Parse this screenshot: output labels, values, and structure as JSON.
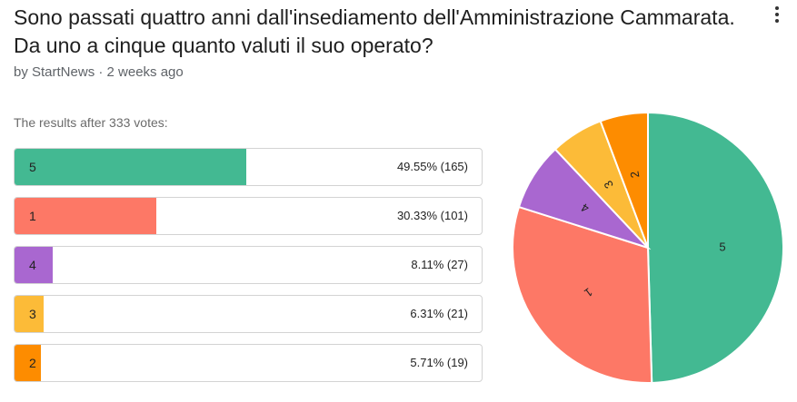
{
  "poll": {
    "title": "Sono passati quattro anni dall'insediamento dell'Amministrazione Cammarata. Da uno a cinque quanto valuti il suo operato?",
    "meta": "by StartNews · 2 weeks ago",
    "summary": "The results after 333 votes:",
    "menu_icon": "more-vert-icon"
  },
  "options": [
    {
      "label": "5",
      "result": "49.55% (165)",
      "percent": 49.55,
      "votes": 165,
      "color": "#43b992"
    },
    {
      "label": "1",
      "result": "30.33% (101)",
      "percent": 30.33,
      "votes": 101,
      "color": "#fd7866"
    },
    {
      "label": "4",
      "result": "8.11% (27)",
      "percent": 8.11,
      "votes": 27,
      "color": "#a967d0"
    },
    {
      "label": "3",
      "result": "6.31% (21)",
      "percent": 6.31,
      "votes": 21,
      "color": "#fcbb38"
    },
    {
      "label": "2",
      "result": "5.71% (19)",
      "percent": 5.71,
      "votes": 19,
      "color": "#fd8c00"
    }
  ],
  "chart_data": {
    "type": "pie",
    "categories": [
      "5",
      "1",
      "4",
      "3",
      "2"
    ],
    "values": [
      165,
      101,
      27,
      21,
      19
    ],
    "colors": [
      "#43b992",
      "#fd7866",
      "#a967d0",
      "#fcbb38",
      "#fd8c00"
    ]
  }
}
